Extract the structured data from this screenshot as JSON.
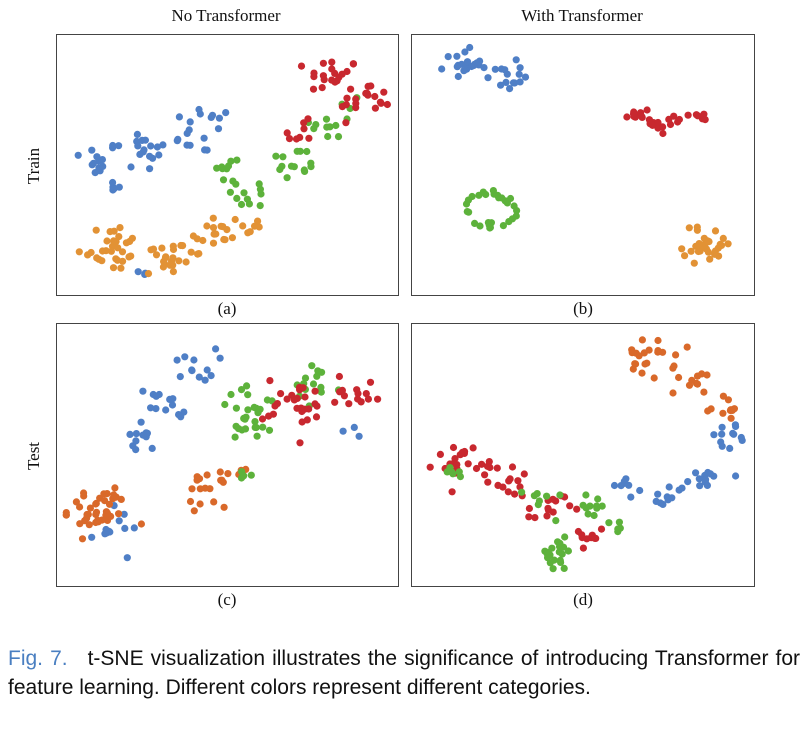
{
  "figure": {
    "col_titles": [
      "No Transformer",
      "With Transformer"
    ],
    "row_titles": [
      "Train",
      "Test"
    ],
    "caption_label": "Fig. 7.",
    "caption_text": "t-SNE visualization illustrates the significance of introducing Transformer for feature learning. Different colors represent different categories."
  },
  "colors": {
    "blue": "#4f7fc6",
    "orange": "#e29235",
    "dark_orange": "#d9692a",
    "red": "#c8282f",
    "green": "#5db23b"
  },
  "chart_data": [
    {
      "type": "scatter",
      "title": "",
      "panel_label": "(a)",
      "column": "No Transformer",
      "row": "Train",
      "xlim": [
        0,
        100
      ],
      "ylim": [
        0,
        100
      ],
      "grid": false,
      "series": [
        {
          "color": "blue",
          "clusters": [
            {
              "x": 10,
              "y": 52,
              "r": 7,
              "n": 14
            },
            {
              "x": 25,
              "y": 56,
              "r": 8,
              "n": 16
            },
            {
              "x": 42,
              "y": 64,
              "r": 9,
              "n": 18
            },
            {
              "x": 18,
              "y": 40,
              "r": 4,
              "n": 6
            },
            {
              "x": 26,
              "y": 7,
              "r": 3,
              "n": 3
            }
          ]
        },
        {
          "color": "orange",
          "clusters": [
            {
              "x": 14,
              "y": 17,
              "r": 9,
              "n": 28
            },
            {
              "x": 32,
              "y": 13,
              "r": 9,
              "n": 25
            },
            {
              "x": 46,
              "y": 22,
              "r": 8,
              "n": 18
            },
            {
              "x": 58,
              "y": 25,
              "r": 4,
              "n": 5
            }
          ]
        },
        {
          "color": "green",
          "clusters": [
            {
              "x": 50,
              "y": 48,
              "r": 6,
              "n": 10
            },
            {
              "x": 58,
              "y": 38,
              "r": 6,
              "n": 10
            },
            {
              "x": 70,
              "y": 50,
              "r": 7,
              "n": 14
            },
            {
              "x": 80,
              "y": 66,
              "r": 6,
              "n": 8
            },
            {
              "x": 88,
              "y": 73,
              "r": 5,
              "n": 5
            }
          ]
        },
        {
          "color": "red",
          "clusters": [
            {
              "x": 82,
              "y": 86,
              "r": 7,
              "n": 20
            },
            {
              "x": 92,
              "y": 76,
              "r": 7,
              "n": 18
            },
            {
              "x": 72,
              "y": 62,
              "r": 5,
              "n": 8
            }
          ]
        }
      ]
    },
    {
      "type": "scatter",
      "title": "",
      "panel_label": "(b)",
      "column": "With Transformer",
      "row": "Train",
      "xlim": [
        0,
        100
      ],
      "ylim": [
        0,
        100
      ],
      "grid": false,
      "series": [
        {
          "color": "blue",
          "clusters": [
            {
              "x": 14,
              "y": 91,
              "r": 5,
              "n": 20
            },
            {
              "x": 26,
              "y": 86,
              "r": 5,
              "n": 16
            }
          ]
        },
        {
          "color": "red",
          "clusters": [
            {
              "x": 66,
              "y": 70,
              "r": 4,
              "n": 12
            },
            {
              "x": 76,
              "y": 67,
              "r": 5,
              "n": 14
            },
            {
              "x": 86,
              "y": 70,
              "r": 3,
              "n": 6
            }
          ]
        },
        {
          "color": "green",
          "clusters": [
            {
              "x": 22,
              "y": 32,
              "r": 7,
              "n": 30,
              "ring": true
            }
          ]
        },
        {
          "color": "orange",
          "clusters": [
            {
              "x": 88,
              "y": 18,
              "r": 7,
              "n": 30
            }
          ]
        }
      ]
    },
    {
      "type": "scatter",
      "title": "",
      "panel_label": "(c)",
      "column": "No Transformer",
      "row": "Test",
      "xlim": [
        0,
        100
      ],
      "ylim": [
        0,
        100
      ],
      "grid": false,
      "series": [
        {
          "color": "blue",
          "clusters": [
            {
              "x": 40,
              "y": 86,
              "r": 6,
              "n": 12
            },
            {
              "x": 30,
              "y": 70,
              "r": 7,
              "n": 14
            },
            {
              "x": 22,
              "y": 55,
              "r": 5,
              "n": 10
            },
            {
              "x": 16,
              "y": 20,
              "r": 7,
              "n": 12
            },
            {
              "x": 88,
              "y": 60,
              "r": 3,
              "n": 3
            }
          ]
        },
        {
          "color": "dark_orange",
          "clusters": [
            {
              "x": 10,
              "y": 28,
              "r": 9,
              "n": 40
            },
            {
              "x": 43,
              "y": 36,
              "r": 6,
              "n": 18
            },
            {
              "x": 56,
              "y": 43,
              "r": 2,
              "n": 3
            }
          ]
        },
        {
          "color": "green",
          "clusters": [
            {
              "x": 58,
              "y": 66,
              "r": 10,
              "n": 28
            },
            {
              "x": 76,
              "y": 77,
              "r": 8,
              "n": 14
            },
            {
              "x": 56,
              "y": 41,
              "r": 3,
              "n": 4
            }
          ]
        },
        {
          "color": "red",
          "clusters": [
            {
              "x": 72,
              "y": 70,
              "r": 10,
              "n": 28
            },
            {
              "x": 90,
              "y": 76,
              "r": 6,
              "n": 14
            }
          ]
        }
      ]
    },
    {
      "type": "scatter",
      "title": "",
      "panel_label": "(d)",
      "column": "With Transformer",
      "row": "Test",
      "xlim": [
        0,
        100
      ],
      "ylim": [
        0,
        100
      ],
      "grid": false,
      "series": [
        {
          "color": "dark_orange",
          "clusters": [
            {
              "x": 70,
              "y": 88,
              "r": 7,
              "n": 22
            },
            {
              "x": 83,
              "y": 80,
              "r": 5,
              "n": 10
            },
            {
              "x": 92,
              "y": 68,
              "r": 5,
              "n": 10
            }
          ]
        },
        {
          "color": "blue",
          "clusters": [
            {
              "x": 94,
              "y": 58,
              "r": 5,
              "n": 12
            },
            {
              "x": 88,
              "y": 42,
              "r": 5,
              "n": 12
            },
            {
              "x": 76,
              "y": 33,
              "r": 5,
              "n": 10
            },
            {
              "x": 64,
              "y": 38,
              "r": 4,
              "n": 8
            }
          ]
        },
        {
          "color": "red",
          "clusters": [
            {
              "x": 12,
              "y": 48,
              "r": 6,
              "n": 20
            },
            {
              "x": 28,
              "y": 40,
              "r": 6,
              "n": 16
            },
            {
              "x": 40,
              "y": 28,
              "r": 6,
              "n": 14
            },
            {
              "x": 50,
              "y": 16,
              "r": 5,
              "n": 10
            }
          ]
        },
        {
          "color": "green",
          "clusters": [
            {
              "x": 10,
              "y": 42,
              "r": 4,
              "n": 6
            },
            {
              "x": 38,
              "y": 32,
              "r": 5,
              "n": 8
            },
            {
              "x": 52,
              "y": 30,
              "r": 5,
              "n": 10
            },
            {
              "x": 42,
              "y": 10,
              "r": 6,
              "n": 20
            },
            {
              "x": 60,
              "y": 22,
              "r": 3,
              "n": 5
            }
          ]
        }
      ]
    }
  ]
}
